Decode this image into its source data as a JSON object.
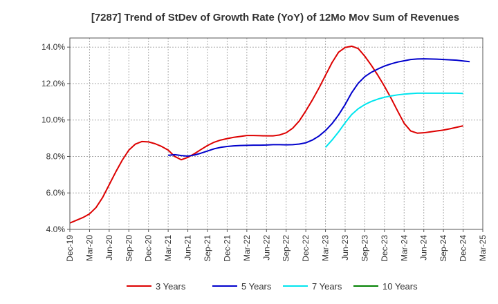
{
  "chart_data": {
    "type": "line",
    "title": "[7287]  Trend of StDev of Growth Rate (YoY) of 12Mo Mov Sum of Revenues",
    "xlabel": "",
    "ylabel": "",
    "ylim": [
      4.0,
      14.5
    ],
    "y_ticks": [
      4.0,
      6.0,
      8.0,
      10.0,
      12.0,
      14.0
    ],
    "y_tick_labels": [
      "4.0%",
      "6.0%",
      "8.0%",
      "10.0%",
      "12.0%",
      "14.0%"
    ],
    "x_tick_labels": [
      "Dec-19",
      "Mar-20",
      "Jun-20",
      "Sep-20",
      "Dec-20",
      "Mar-21",
      "Jun-21",
      "Sep-21",
      "Dec-21",
      "Mar-22",
      "Jun-22",
      "Sep-22",
      "Dec-22",
      "Mar-23",
      "Jun-23",
      "Sep-23",
      "Dec-23",
      "Mar-24",
      "Jun-24",
      "Sep-24",
      "Dec-24",
      "Mar-25"
    ],
    "x_start": "Dec-19",
    "x_end": "Mar-25",
    "grid": true,
    "legend_position": "bottom",
    "series": [
      {
        "name": "3 Years",
        "color": "#dd0000",
        "start": "Dec-19",
        "values": [
          4.35,
          4.5,
          4.65,
          4.85,
          5.2,
          5.75,
          6.45,
          7.15,
          7.8,
          8.35,
          8.68,
          8.82,
          8.8,
          8.7,
          8.55,
          8.35,
          8.0,
          7.82,
          7.95,
          8.15,
          8.38,
          8.6,
          8.78,
          8.9,
          8.98,
          9.05,
          9.1,
          9.15,
          9.15,
          9.14,
          9.13,
          9.13,
          9.18,
          9.3,
          9.55,
          9.95,
          10.5,
          11.1,
          11.75,
          12.45,
          13.15,
          13.72,
          13.98,
          14.05,
          13.92,
          13.5,
          13.0,
          12.45,
          11.85,
          11.2,
          10.5,
          9.82,
          9.4,
          9.28,
          9.3,
          9.35,
          9.4,
          9.45,
          9.52,
          9.6,
          9.68
        ]
      },
      {
        "name": "5 Years",
        "color": "#0000cc",
        "start": "Mar-21",
        "values": [
          8.06,
          8.1,
          8.05,
          8.02,
          8.08,
          8.18,
          8.3,
          8.42,
          8.5,
          8.55,
          8.58,
          8.6,
          8.61,
          8.62,
          8.62,
          8.63,
          8.65,
          8.65,
          8.64,
          8.65,
          8.68,
          8.75,
          8.9,
          9.12,
          9.42,
          9.8,
          10.28,
          10.85,
          11.5,
          12.02,
          12.38,
          12.62,
          12.8,
          12.96,
          13.08,
          13.18,
          13.25,
          13.32,
          13.35,
          13.36,
          13.35,
          13.34,
          13.32,
          13.3,
          13.28,
          13.24,
          13.2
        ]
      },
      {
        "name": "7 Years",
        "color": "#00e5ee",
        "start": "Mar-23",
        "values": [
          8.5,
          8.9,
          9.35,
          9.85,
          10.3,
          10.62,
          10.85,
          11.02,
          11.15,
          11.25,
          11.32,
          11.38,
          11.42,
          11.45,
          11.47,
          11.47,
          11.47,
          11.47,
          11.47,
          11.47,
          11.47,
          11.46
        ]
      },
      {
        "name": "10 Years",
        "color": "#008000",
        "start": "Dec-24",
        "values": []
      }
    ]
  }
}
